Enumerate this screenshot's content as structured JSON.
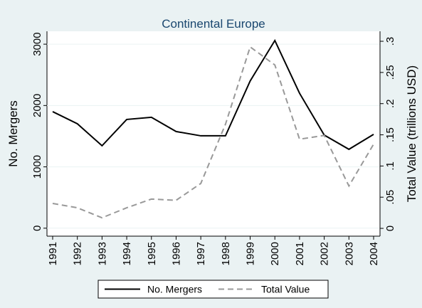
{
  "chart_data": {
    "type": "line",
    "title": "Continental Europe",
    "categories": [
      "1991",
      "1992",
      "1993",
      "1994",
      "1995",
      "1996",
      "1997",
      "1998",
      "1999",
      "2000",
      "2001",
      "2002",
      "2003",
      "2004"
    ],
    "series": [
      {
        "name": "No. Mergers",
        "color": "#000000",
        "dash": "solid",
        "values": [
          1900,
          1703,
          1344,
          1773,
          1808,
          1576,
          1506,
          1506,
          2400,
          3060,
          2200,
          1518,
          1286,
          1530
        ]
      },
      {
        "name": "Total Value",
        "color": "#999999",
        "dash": "dashed",
        "axis": "y2",
        "values": [
          0.04,
          0.033,
          0.017,
          0.033,
          0.047,
          0.045,
          0.072,
          0.167,
          0.291,
          0.262,
          0.143,
          0.149,
          0.068,
          0.135
        ]
      }
    ],
    "ylabel": "No. Mergers",
    "y2label": "Total Value (trillions USD)",
    "ylim": [
      -130,
      3210
    ],
    "yticks": [
      0,
      1000,
      2000,
      3000
    ],
    "y2lim": [
      -0.0125,
      0.316
    ],
    "y2ticks": [
      0,
      {
        "value": 0.05,
        "label": ".05"
      },
      {
        "value": 0.1,
        "label": ".1"
      },
      {
        "value": 0.15,
        "label": ".15"
      },
      {
        "value": 0.2,
        "label": ".2"
      },
      {
        "value": 0.25,
        "label": ".25"
      },
      {
        "value": 0.3,
        "label": ".3"
      }
    ],
    "grid": true,
    "legend": "bottom"
  }
}
